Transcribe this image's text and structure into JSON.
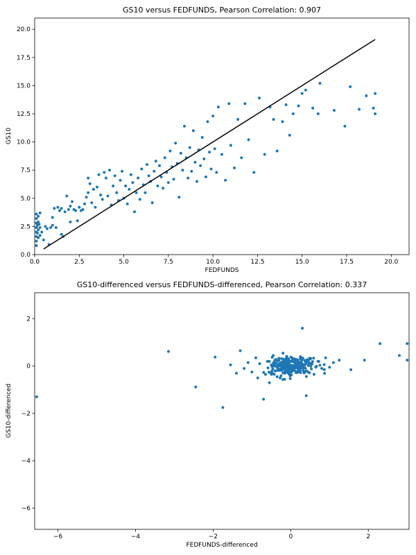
{
  "chart_data": [
    {
      "type": "scatter",
      "title": "GS10 versus FEDFUNDS, Pearson Correlation: 0.907",
      "xlabel": "FEDFUNDS",
      "ylabel": "GS10",
      "xlim": [
        0,
        21
      ],
      "ylim": [
        0,
        21
      ],
      "xticks": [
        0.0,
        2.5,
        5.0,
        7.5,
        10.0,
        12.5,
        15.0,
        17.5,
        20.0
      ],
      "yticks": [
        0.0,
        2.5,
        5.0,
        7.5,
        10.0,
        12.5,
        15.0,
        17.5,
        20.0
      ],
      "tick_format": "fixed1",
      "line": {
        "x": [
          0.5,
          19.1
        ],
        "y": [
          0.5,
          19.1
        ],
        "color": "#000000"
      },
      "color": "#1f77b4",
      "points": [
        [
          0.1,
          0.8
        ],
        [
          0.1,
          1.2
        ],
        [
          0.1,
          1.6
        ],
        [
          0.1,
          2.0
        ],
        [
          0.1,
          2.4
        ],
        [
          0.1,
          2.8
        ],
        [
          0.1,
          3.2
        ],
        [
          0.1,
          3.6
        ],
        [
          0.15,
          1.9
        ],
        [
          0.15,
          2.6
        ],
        [
          0.2,
          1.5
        ],
        [
          0.2,
          2.2
        ],
        [
          0.2,
          2.9
        ],
        [
          0.2,
          3.4
        ],
        [
          0.25,
          2.7
        ],
        [
          0.3,
          1.7
        ],
        [
          0.3,
          2.4
        ],
        [
          0.3,
          3.7
        ],
        [
          0.4,
          2.0
        ],
        [
          0.5,
          1.3
        ],
        [
          0.6,
          2.5
        ],
        [
          0.7,
          2.3
        ],
        [
          0.8,
          0.9
        ],
        [
          0.9,
          2.4
        ],
        [
          1.0,
          2.6
        ],
        [
          1.0,
          3.3
        ],
        [
          1.1,
          4.1
        ],
        [
          1.2,
          2.4
        ],
        [
          1.3,
          4.2
        ],
        [
          1.4,
          3.9
        ],
        [
          1.5,
          1.8
        ],
        [
          1.5,
          4.1
        ],
        [
          1.6,
          1.6
        ],
        [
          1.7,
          3.8
        ],
        [
          1.8,
          5.2
        ],
        [
          1.9,
          4.0
        ],
        [
          2.0,
          2.9
        ],
        [
          2.0,
          4.3
        ],
        [
          2.1,
          4.7
        ],
        [
          2.2,
          4.0
        ],
        [
          2.3,
          3.9
        ],
        [
          2.4,
          3.0
        ],
        [
          2.5,
          4.2
        ],
        [
          2.6,
          3.9
        ],
        [
          2.7,
          4.0
        ],
        [
          2.8,
          4.5
        ],
        [
          2.9,
          5.1
        ],
        [
          3.0,
          6.8
        ],
        [
          3.0,
          5.5
        ],
        [
          3.1,
          6.3
        ],
        [
          3.2,
          4.6
        ],
        [
          3.3,
          5.8
        ],
        [
          3.4,
          4.2
        ],
        [
          3.5,
          6.0
        ],
        [
          3.6,
          7.1
        ],
        [
          3.7,
          5.3
        ],
        [
          3.8,
          4.9
        ],
        [
          3.9,
          7.3
        ],
        [
          4.0,
          6.8
        ],
        [
          4.1,
          5.2
        ],
        [
          4.2,
          7.5
        ],
        [
          4.3,
          4.4
        ],
        [
          4.4,
          6.1
        ],
        [
          4.5,
          7.0
        ],
        [
          4.6,
          5.5
        ],
        [
          4.7,
          4.8
        ],
        [
          4.8,
          6.6
        ],
        [
          4.9,
          7.4
        ],
        [
          5.0,
          5.0
        ],
        [
          5.1,
          6.1
        ],
        [
          5.2,
          4.5
        ],
        [
          5.3,
          5.8
        ],
        [
          5.4,
          7.1
        ],
        [
          5.5,
          6.4
        ],
        [
          5.6,
          3.8
        ],
        [
          5.7,
          5.5
        ],
        [
          5.8,
          6.8
        ],
        [
          5.9,
          4.9
        ],
        [
          6.0,
          7.6
        ],
        [
          6.1,
          6.2
        ],
        [
          6.2,
          5.5
        ],
        [
          6.3,
          8.0
        ],
        [
          6.4,
          7.0
        ],
        [
          6.5,
          6.5
        ],
        [
          6.6,
          4.6
        ],
        [
          6.7,
          7.4
        ],
        [
          6.8,
          8.3
        ],
        [
          6.9,
          6.1
        ],
        [
          7.0,
          7.9
        ],
        [
          7.1,
          6.9
        ],
        [
          7.2,
          5.9
        ],
        [
          7.3,
          8.6
        ],
        [
          7.4,
          7.3
        ],
        [
          7.5,
          6.4
        ],
        [
          7.6,
          9.2
        ],
        [
          7.7,
          7.8
        ],
        [
          7.8,
          6.7
        ],
        [
          7.9,
          9.9
        ],
        [
          8.0,
          8.1
        ],
        [
          8.1,
          5.1
        ],
        [
          8.2,
          9.0
        ],
        [
          8.3,
          7.5
        ],
        [
          8.4,
          11.4
        ],
        [
          8.5,
          8.6
        ],
        [
          8.6,
          6.8
        ],
        [
          8.7,
          9.5
        ],
        [
          8.8,
          7.4
        ],
        [
          8.9,
          11.0
        ],
        [
          9.0,
          8.2
        ],
        [
          9.1,
          6.5
        ],
        [
          9.2,
          9.3
        ],
        [
          9.3,
          7.9
        ],
        [
          9.4,
          10.4
        ],
        [
          9.5,
          8.5
        ],
        [
          9.6,
          6.9
        ],
        [
          9.7,
          11.8
        ],
        [
          9.8,
          9.1
        ],
        [
          9.9,
          7.6
        ],
        [
          10.0,
          12.3
        ],
        [
          10.1,
          9.4
        ],
        [
          10.2,
          7.3
        ],
        [
          10.3,
          13.1
        ],
        [
          10.5,
          8.9
        ],
        [
          10.7,
          6.6
        ],
        [
          10.9,
          13.4
        ],
        [
          11.0,
          9.7
        ],
        [
          11.2,
          7.7
        ],
        [
          11.4,
          12.0
        ],
        [
          11.6,
          8.6
        ],
        [
          11.8,
          13.4
        ],
        [
          12.0,
          10.2
        ],
        [
          12.3,
          7.3
        ],
        [
          12.6,
          13.9
        ],
        [
          12.9,
          8.9
        ],
        [
          13.2,
          13.1
        ],
        [
          13.4,
          12.0
        ],
        [
          13.6,
          9.2
        ],
        [
          13.9,
          11.8
        ],
        [
          14.1,
          13.3
        ],
        [
          14.3,
          10.6
        ],
        [
          14.5,
          12.5
        ],
        [
          14.8,
          13.2
        ],
        [
          15.0,
          14.3
        ],
        [
          15.2,
          14.6
        ],
        [
          15.6,
          13.0
        ],
        [
          15.9,
          12.5
        ],
        [
          16.0,
          15.2
        ],
        [
          16.8,
          12.8
        ],
        [
          17.4,
          11.4
        ],
        [
          17.7,
          14.9
        ],
        [
          18.2,
          12.9
        ],
        [
          18.6,
          14.1
        ],
        [
          19.0,
          13.0
        ],
        [
          19.1,
          12.5
        ],
        [
          19.1,
          14.3
        ]
      ]
    },
    {
      "type": "scatter",
      "title": "GS10-differenced versus FEDFUNDS-differenced, Pearson Correlation: 0.337",
      "xlabel": "FEDFUNDS-differenced",
      "ylabel": "GS10-differenced",
      "xlim": [
        -6.6,
        3.05
      ],
      "ylim": [
        -6.9,
        3.1
      ],
      "xticks": [
        -6,
        -4,
        -2,
        0,
        2
      ],
      "yticks": [
        -6,
        -4,
        -2,
        0,
        2
      ],
      "tick_format": "int",
      "color": "#1f77b4",
      "points": [
        [
          -6.55,
          -1.3
        ],
        [
          -3.15,
          0.62
        ],
        [
          -2.45,
          -0.88
        ],
        [
          -1.95,
          0.38
        ],
        [
          -1.75,
          -1.75
        ],
        [
          -1.55,
          0.05
        ],
        [
          -1.4,
          -0.3
        ],
        [
          -1.3,
          0.65
        ],
        [
          -1.2,
          -0.1
        ],
        [
          -1.1,
          0.15
        ],
        [
          -1.0,
          -0.25
        ],
        [
          -0.9,
          0.35
        ],
        [
          -0.85,
          -0.5
        ],
        [
          -0.8,
          0.1
        ],
        [
          -0.7,
          -1.4
        ],
        [
          -0.65,
          -0.35
        ],
        [
          -0.6,
          0.2
        ],
        [
          -0.55,
          -0.7
        ],
        [
          -0.5,
          0.05
        ],
        [
          -0.45,
          0.45
        ],
        [
          -0.4,
          -0.2
        ],
        [
          -0.35,
          -0.45
        ],
        [
          -0.3,
          0.25
        ],
        [
          -0.25,
          -0.1
        ],
        [
          -0.2,
          0.55
        ],
        [
          -0.15,
          -0.3
        ],
        [
          -0.1,
          0.1
        ],
        [
          -0.05,
          -0.05
        ],
        [
          0.0,
          0.2
        ],
        [
          0.05,
          -0.2
        ],
        [
          0.1,
          0.3
        ],
        [
          0.15,
          0.0
        ],
        [
          0.2,
          -0.15
        ],
        [
          0.25,
          0.4
        ],
        [
          0.3,
          1.6
        ],
        [
          0.35,
          0.05
        ],
        [
          0.4,
          -1.25
        ],
        [
          0.45,
          -0.25
        ],
        [
          0.5,
          0.3
        ],
        [
          0.55,
          0.1
        ],
        [
          0.6,
          -0.35
        ],
        [
          0.7,
          0.2
        ],
        [
          0.8,
          -0.1
        ],
        [
          0.9,
          0.35
        ],
        [
          1.0,
          -0.05
        ],
        [
          1.1,
          0.15
        ],
        [
          1.25,
          0.25
        ],
        [
          1.55,
          -0.15
        ],
        [
          1.9,
          0.25
        ],
        [
          2.3,
          0.95
        ],
        [
          2.8,
          0.45
        ],
        [
          3.0,
          0.95
        ],
        [
          3.0,
          0.25
        ],
        [
          0.02,
          0.02
        ],
        [
          0.08,
          -0.08
        ],
        [
          -0.08,
          0.08
        ],
        [
          0.12,
          0.12
        ],
        [
          -0.12,
          -0.12
        ],
        [
          0.18,
          0.06
        ],
        [
          -0.18,
          -0.06
        ],
        [
          0.06,
          0.18
        ],
        [
          -0.06,
          -0.18
        ],
        [
          0.22,
          -0.02
        ],
        [
          -0.22,
          0.02
        ],
        [
          0.28,
          0.14
        ],
        [
          -0.28,
          -0.14
        ],
        [
          0.14,
          -0.28
        ],
        [
          -0.14,
          0.28
        ],
        [
          0.32,
          -0.06
        ],
        [
          -0.32,
          0.06
        ],
        [
          0.04,
          0.34
        ],
        [
          -0.04,
          -0.34
        ],
        [
          0.38,
          0.18
        ]
      ],
      "cluster": {
        "cx": 0.0,
        "cy": 0.0,
        "sx": 0.28,
        "sy": 0.2,
        "n": 230,
        "seed": 7
      }
    }
  ]
}
